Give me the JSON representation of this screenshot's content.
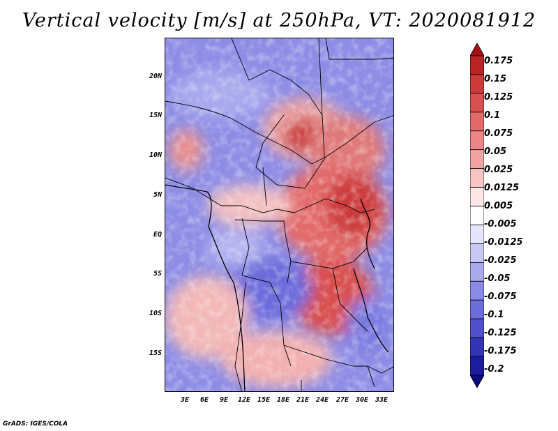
{
  "title": "Vertical velocity [m/s] at 250hPa, VT: 2020081912",
  "credit": "GrADS: IGES/COLA",
  "map": {
    "region": "Central Africa",
    "projection": "latlon",
    "lat_range": [
      -20,
      25
    ],
    "lon_range": [
      0,
      35
    ],
    "lat_ticks": [
      "20N",
      "15N",
      "10N",
      "5N",
      "EQ",
      "5S",
      "10S",
      "15S"
    ],
    "lon_ticks": [
      "3E",
      "6E",
      "9E",
      "12E",
      "15E",
      "18E",
      "21E",
      "24E",
      "27E",
      "30E",
      "33E"
    ]
  },
  "colorbar": {
    "labels": [
      "0.175",
      "0.15",
      "0.125",
      "0.1",
      "0.075",
      "0.05",
      "0.025",
      "0.0125",
      "0.005",
      "-0.005",
      "-0.0125",
      "-0.025",
      "-0.05",
      "-0.075",
      "-0.1",
      "-0.125",
      "-0.175",
      "-0.2"
    ],
    "colors": [
      "#a50f15",
      "#bb2424",
      "#cc3a3a",
      "#d95050",
      "#e36a6a",
      "#ec8585",
      "#f3a3a3",
      "#f8c4c4",
      "#fde6e6",
      "#ffffff",
      "#e5e5fb",
      "#c8c8f5",
      "#a9a9ee",
      "#8a8ae6",
      "#6c6cdc",
      "#5050cc",
      "#3434b8",
      "#1c1ca0",
      "#0a0a80"
    ]
  }
}
